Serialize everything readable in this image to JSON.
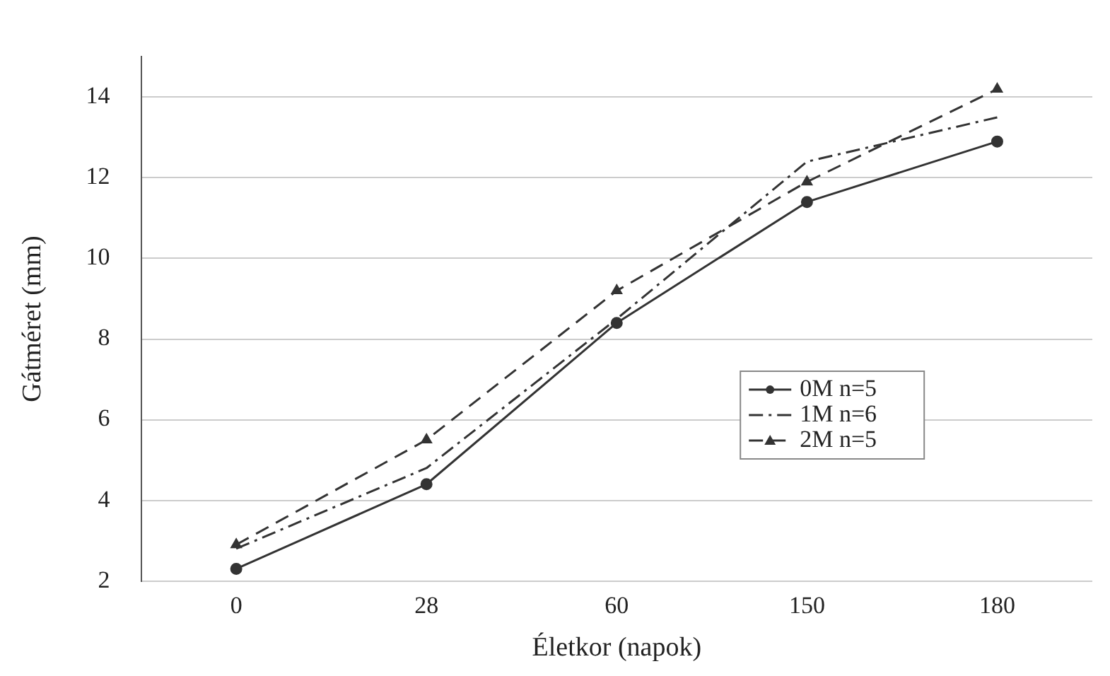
{
  "chart_data": {
    "type": "line",
    "xlabel": "Életkor (napok)",
    "ylabel": "Gátméret (mm)",
    "categories": [
      "0",
      "28",
      "60",
      "150",
      "180"
    ],
    "series": [
      {
        "name": "0M n=5",
        "color": "#333333",
        "values": [
          2.3,
          4.4,
          8.4,
          11.4,
          12.9
        ],
        "marker": "circle",
        "line_style": "solid"
      },
      {
        "name": "1M n=6",
        "color": "#333333",
        "values": [
          2.8,
          4.8,
          8.5,
          12.4,
          13.5
        ],
        "marker": "none",
        "line_style": "dashdot"
      },
      {
        "name": "2M n=5",
        "color": "#333333",
        "values": [
          2.9,
          5.5,
          9.2,
          11.9,
          14.2
        ],
        "marker": "triangle",
        "line_style": "dashed"
      }
    ],
    "ylim": [
      2,
      15
    ],
    "yticks": [
      2,
      4,
      6,
      8,
      10,
      12,
      14
    ],
    "grid": "y",
    "legend": "right"
  }
}
